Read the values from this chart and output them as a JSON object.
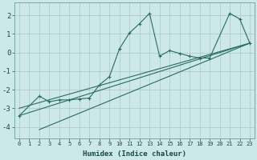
{
  "xlabel": "Humidex (Indice chaleur)",
  "background_color": "#cce8e8",
  "grid_color": "#b0cccc",
  "line_color": "#2a6b60",
  "xlim": [
    -0.5,
    23.5
  ],
  "ylim": [
    -4.6,
    2.7
  ],
  "yticks": [
    -4,
    -3,
    -2,
    -1,
    0,
    1,
    2
  ],
  "xticks": [
    0,
    1,
    2,
    3,
    4,
    5,
    6,
    7,
    8,
    9,
    10,
    11,
    12,
    13,
    14,
    15,
    16,
    17,
    18,
    19,
    20,
    21,
    22,
    23
  ],
  "series1_x": [
    0,
    2,
    3,
    4,
    5,
    6,
    7,
    8,
    9,
    10,
    11,
    12,
    13,
    14,
    15,
    16,
    17,
    18,
    19,
    21,
    22,
    23
  ],
  "series1_y": [
    -3.4,
    -2.35,
    -2.65,
    -2.55,
    -2.55,
    -2.5,
    -2.45,
    -1.75,
    -1.3,
    0.2,
    1.05,
    1.55,
    2.1,
    -0.2,
    0.1,
    -0.05,
    -0.2,
    -0.3,
    -0.3,
    2.1,
    1.8,
    0.5
  ],
  "series2_x": [
    0,
    23
  ],
  "series2_y": [
    -3.4,
    0.5
  ],
  "series3_x": [
    2,
    23
  ],
  "series3_y": [
    -4.15,
    0.5
  ],
  "series4_x": [
    0,
    23
  ],
  "series4_y": [
    -3.0,
    0.5
  ],
  "xtick_fontsize": 5.0,
  "ytick_fontsize": 6.5,
  "xlabel_fontsize": 6.5
}
